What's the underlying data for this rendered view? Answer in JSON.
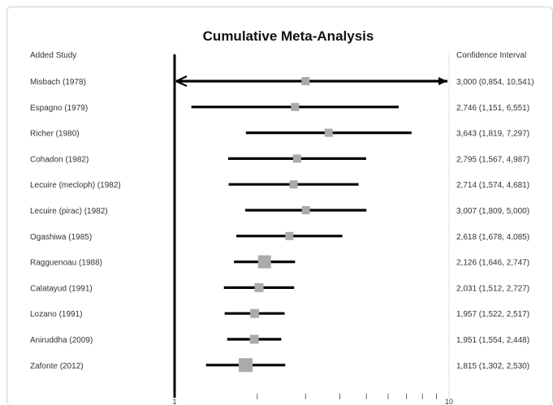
{
  "chart_data": {
    "type": "forest",
    "title": "Cumulative Meta-Analysis",
    "left_header": "Added Study",
    "right_header": "Confidence Interval",
    "x_scale": "log",
    "xlim": [
      1,
      10
    ],
    "x_ticks": [
      1,
      10
    ],
    "x_tick_labels": [
      "1",
      "10"
    ],
    "studies": [
      {
        "label": "Misbach (1978)",
        "estimate": 3.0,
        "lower": 0.854,
        "upper": 10.541,
        "ci_text": "3,000 (0,854, 10,541)",
        "weight": 1.0
      },
      {
        "label": "Espagno (1979)",
        "estimate": 2.746,
        "lower": 1.151,
        "upper": 6.551,
        "ci_text": "2,746 (1,151, 6,551)",
        "weight": 1.0
      },
      {
        "label": "Richer (1980)",
        "estimate": 3.643,
        "lower": 1.819,
        "upper": 7.297,
        "ci_text": "3,643 (1,819, 7,297)",
        "weight": 1.0
      },
      {
        "label": "Cohadon (1982)",
        "estimate": 2.795,
        "lower": 1.567,
        "upper": 4.987,
        "ci_text": "2,795 (1,567, 4,987)",
        "weight": 1.0
      },
      {
        "label": "Lecuire (mecloph) (1982)",
        "estimate": 2.714,
        "lower": 1.574,
        "upper": 4.681,
        "ci_text": "2,714 (1,574, 4,681)",
        "weight": 1.0
      },
      {
        "label": "Lecuire (pirac) (1982)",
        "estimate": 3.007,
        "lower": 1.809,
        "upper": 5.0,
        "ci_text": "3,007 (1,809, 5,000)",
        "weight": 1.0
      },
      {
        "label": "Ogashiwa (1985)",
        "estimate": 2.618,
        "lower": 1.678,
        "upper": 4.085,
        "ci_text": "2,618 (1,678, 4,085)",
        "weight": 1.0
      },
      {
        "label": "Ragguenoau (1988)",
        "estimate": 2.126,
        "lower": 1.646,
        "upper": 2.747,
        "ci_text": "2,126 (1,646, 2,747)",
        "weight": 1.6
      },
      {
        "label": "Calatayud (1991)",
        "estimate": 2.031,
        "lower": 1.512,
        "upper": 2.727,
        "ci_text": "2,031 (1,512, 2,727)",
        "weight": 1.1
      },
      {
        "label": "Lozano (1991)",
        "estimate": 1.957,
        "lower": 1.522,
        "upper": 2.517,
        "ci_text": "1,957 (1,522, 2,517)",
        "weight": 1.1
      },
      {
        "label": "Aniruddha (2009)",
        "estimate": 1.951,
        "lower": 1.554,
        "upper": 2.448,
        "ci_text": "1,951 (1,554, 2,448)",
        "weight": 1.1
      },
      {
        "label": "Zafonte (2012)",
        "estimate": 1.815,
        "lower": 1.302,
        "upper": 2.53,
        "ci_text": "1,815 (1,302, 2,530)",
        "weight": 1.7
      }
    ],
    "colors": {
      "ci_line": "#000000",
      "marker": "#aaaaaa",
      "axis": "#000000",
      "dotted": "#b0b0b0",
      "text": "#333333"
    },
    "grid": false
  }
}
